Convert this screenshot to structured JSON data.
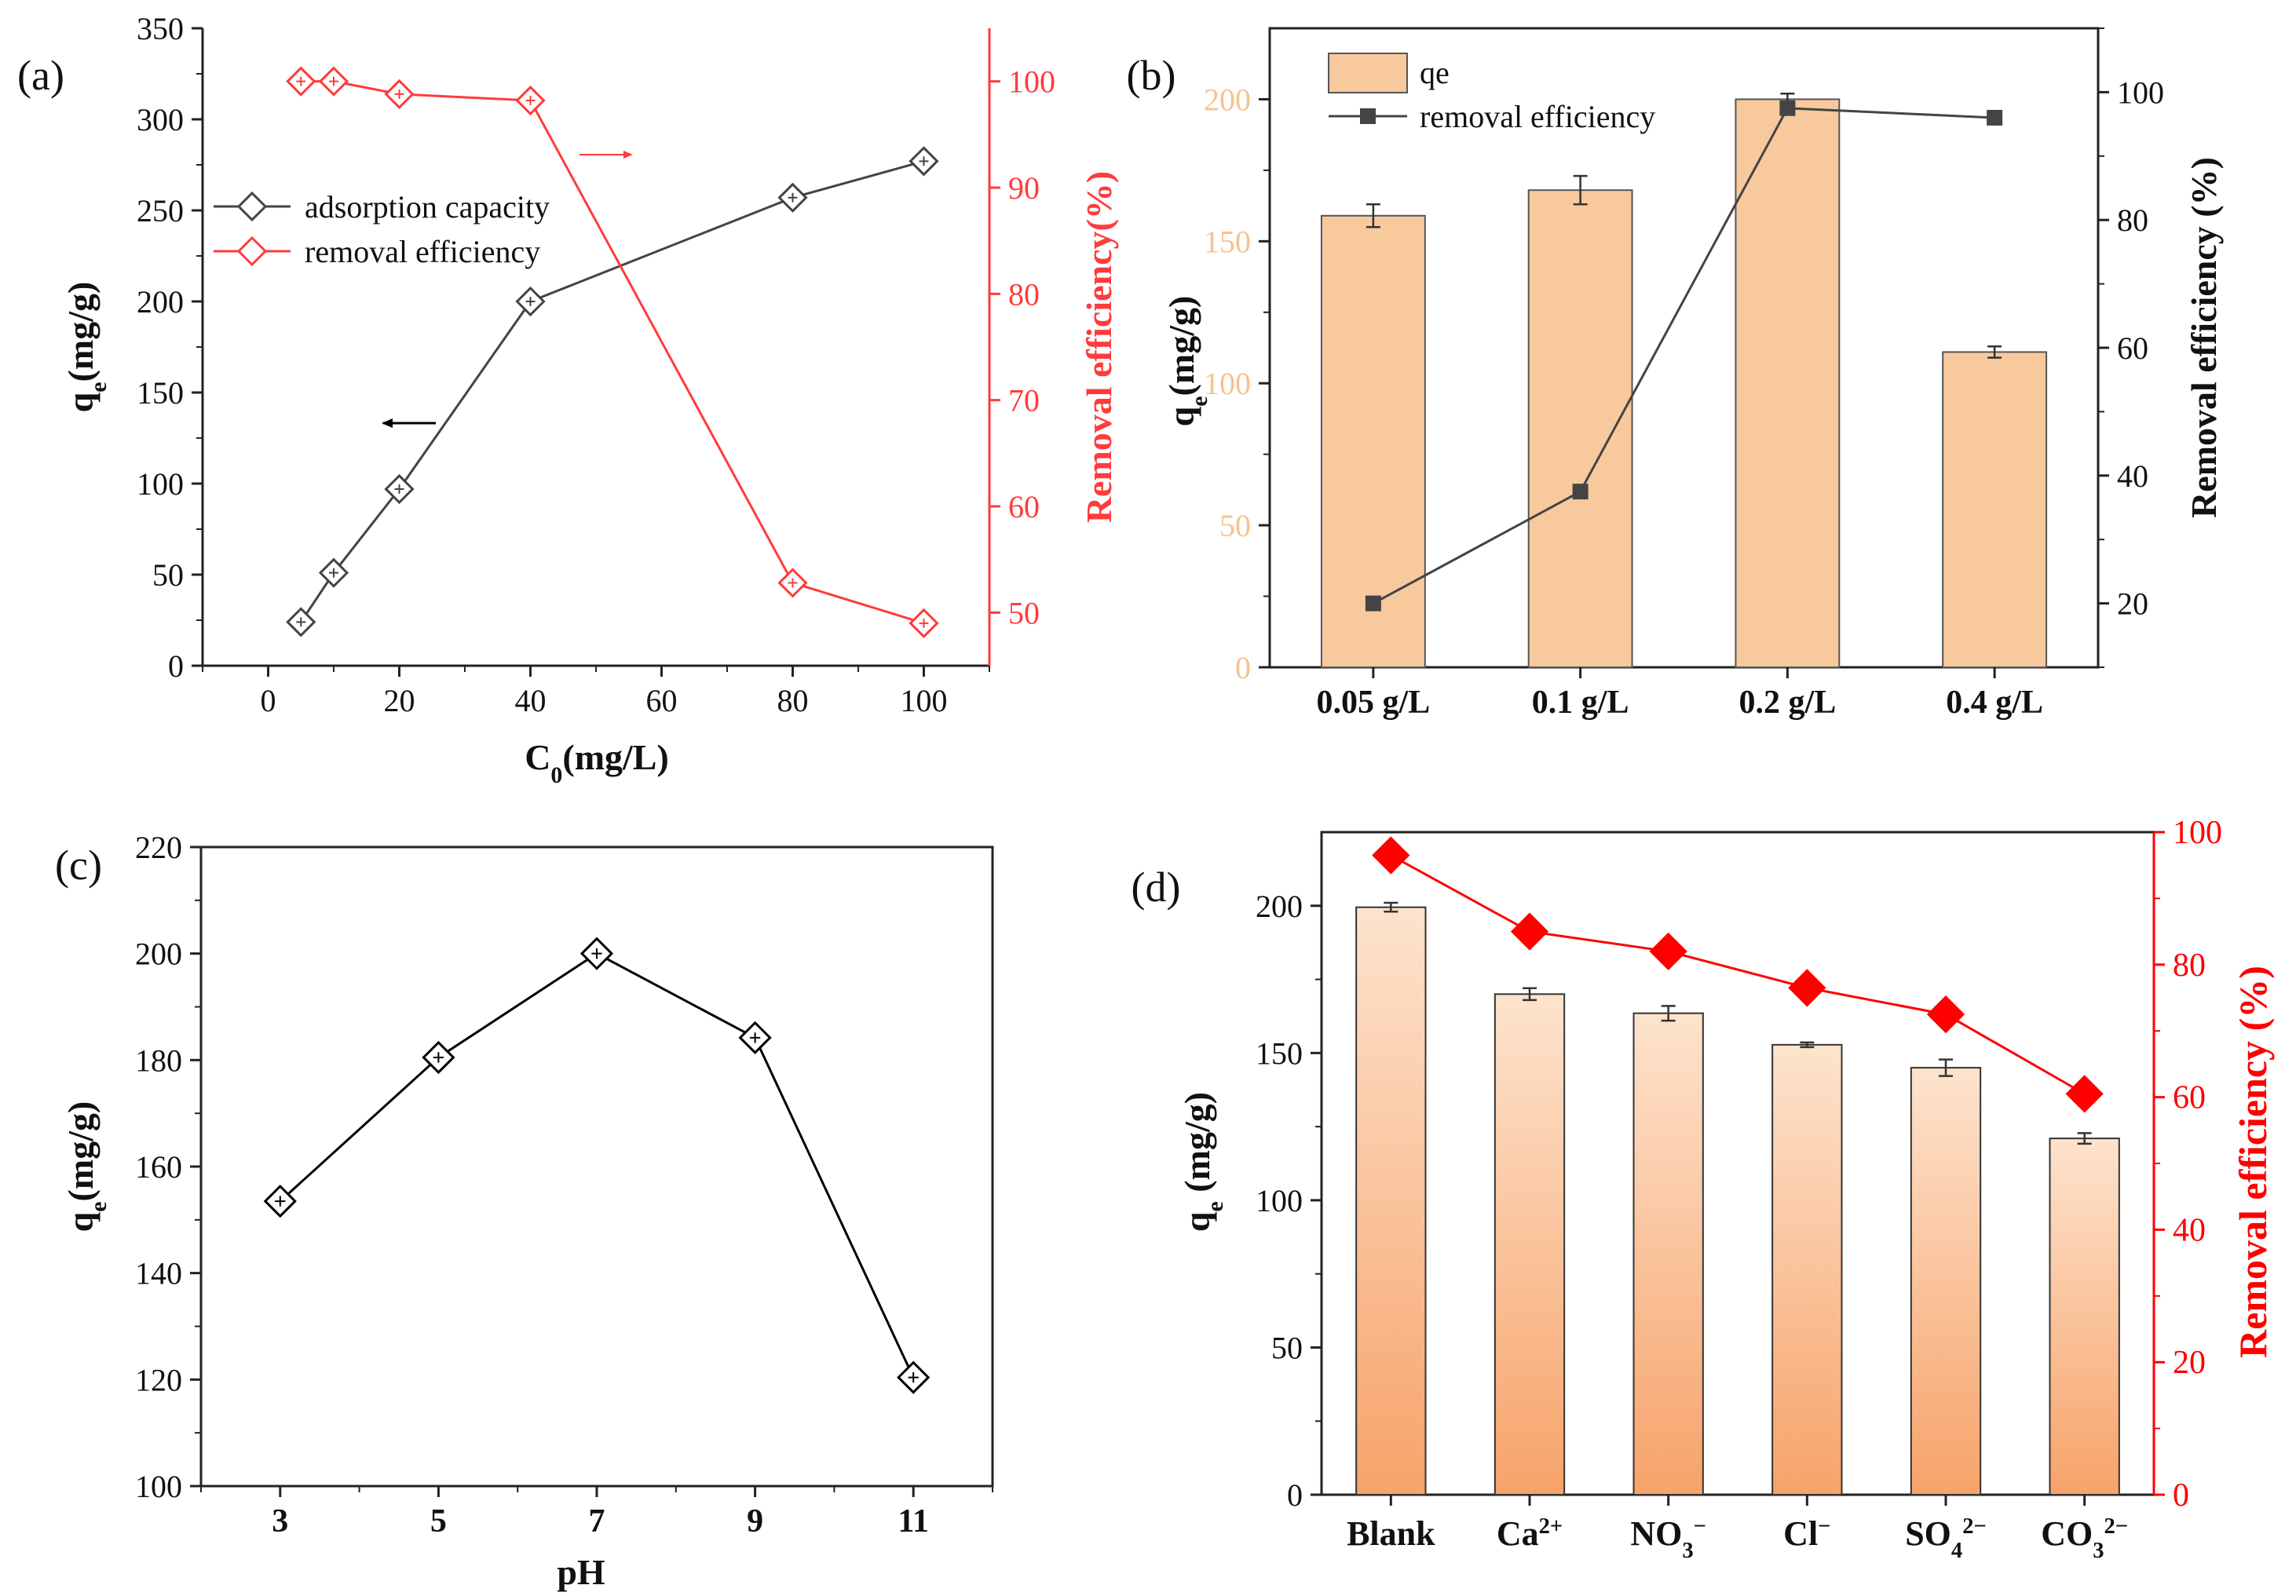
{
  "colors": {
    "axis": "#222222",
    "black_series": "#444444",
    "red": "#ff3b3b",
    "red_strong": "#ff0000",
    "bar_b": "#f9c99e",
    "bar_b_stroke": "#555555",
    "bar_b_tick": "#f7c28e",
    "bar_d_top": "#fde3cd",
    "bar_d_bottom": "#f7a36a"
  },
  "chart_data": [
    {
      "panel_label": "(a)",
      "type": "line",
      "xlabel": "C",
      "xlabel_sub": "0",
      "xlabel_tail": "(mg/L)",
      "ylabel": "q",
      "ylabel_sub": "e",
      "ylabel_tail": "(mg/g)",
      "y2label": "Removal  efficiency(%)",
      "xlim": [
        -10,
        110
      ],
      "ylim": [
        0,
        350
      ],
      "y2lim": [
        45,
        105
      ],
      "xticks": [
        "0",
        "20",
        "40",
        "60",
        "80",
        "100"
      ],
      "yticks": [
        "0",
        "50",
        "100",
        "150",
        "200",
        "250",
        "300",
        "350"
      ],
      "y2ticks": [
        "50",
        "60",
        "70",
        "80",
        "90",
        "100"
      ],
      "series": [
        {
          "name": "adsorption capacity",
          "axis": "left",
          "color": "#444444",
          "marker": "diamond-open",
          "x": [
            5,
            10,
            20,
            40,
            80,
            100
          ],
          "y": [
            24,
            51,
            97,
            200,
            257,
            277
          ]
        },
        {
          "name": "removal efficiency",
          "axis": "right",
          "color": "#ff3b3b",
          "marker": "diamond-open",
          "x": [
            5,
            10,
            20,
            40,
            80,
            100
          ],
          "y": [
            100,
            100,
            98.8,
            98.2,
            52.8,
            49.0
          ]
        }
      ],
      "legend_position": "upper-left"
    },
    {
      "panel_label": "(b)",
      "type": "bar",
      "ylabel": "q",
      "ylabel_sub": "e",
      "ylabel_tail": "(mg/g)",
      "y2label": "Removal efficiency (%)",
      "categories": [
        "0.05 g/L",
        "0.1 g/L",
        "0.2 g/L",
        "0.4 g/L"
      ],
      "ylim": [
        0,
        225
      ],
      "y2lim": [
        10,
        110
      ],
      "yticks": [
        "0",
        "50",
        "100",
        "150",
        "200"
      ],
      "y2ticks": [
        "20",
        "40",
        "60",
        "80",
        "100"
      ],
      "series": [
        {
          "name": "qe",
          "type": "bar",
          "axis": "left",
          "values": [
            159,
            168,
            200,
            111
          ],
          "errors": [
            4,
            5,
            2,
            2
          ]
        },
        {
          "name": "removal efficiency",
          "type": "line",
          "axis": "right",
          "marker": "square-filled",
          "values": [
            20,
            37.5,
            97.5,
            96
          ]
        }
      ],
      "legend_position": "upper-left"
    },
    {
      "panel_label": "(c)",
      "type": "line",
      "xlabel": "pH",
      "ylabel": "q",
      "ylabel_sub": "e",
      "ylabel_tail": "(mg/g)",
      "xlim": [
        2,
        12
      ],
      "ylim": [
        100,
        220
      ],
      "xticks": [
        "3",
        "5",
        "7",
        "9",
        "11"
      ],
      "yticks": [
        "100",
        "120",
        "140",
        "160",
        "180",
        "200",
        "220"
      ],
      "series": [
        {
          "axis": "left",
          "marker": "diamond-open",
          "x": [
            3,
            5,
            7,
            9,
            11
          ],
          "y": [
            153.5,
            180.5,
            200,
            184.2,
            120.4
          ]
        }
      ]
    },
    {
      "panel_label": "(d)",
      "type": "bar",
      "ylabel": "q",
      "ylabel_sub": "e",
      "ylabel_tail": " (mg/g)",
      "y2label": "Removal efficiency (%)",
      "categories": [
        "Blank",
        "Ca",
        "NO",
        "Cl",
        "SO",
        "CO"
      ],
      "category_subs": [
        "",
        "",
        "3",
        "",
        "4",
        "3"
      ],
      "category_sups": [
        "",
        "2+",
        "−",
        "−",
        "2−",
        "2−"
      ],
      "ylim": [
        0,
        225
      ],
      "y2lim": [
        0,
        100
      ],
      "yticks": [
        "0",
        "50",
        "100",
        "150",
        "200"
      ],
      "y2ticks": [
        "0",
        "20",
        "40",
        "60",
        "80",
        "100"
      ],
      "series": [
        {
          "name": "qe",
          "type": "bar",
          "axis": "left",
          "values": [
            199.5,
            170,
            163.5,
            152.8,
            145,
            121
          ],
          "errors": [
            1.5,
            2,
            2.5,
            0.8,
            2.8,
            1.8
          ]
        },
        {
          "name": "removal efficiency",
          "type": "line",
          "axis": "right",
          "marker": "diamond-filled",
          "values": [
            96.5,
            85,
            82,
            76.5,
            72.5,
            60.5
          ]
        }
      ]
    }
  ]
}
